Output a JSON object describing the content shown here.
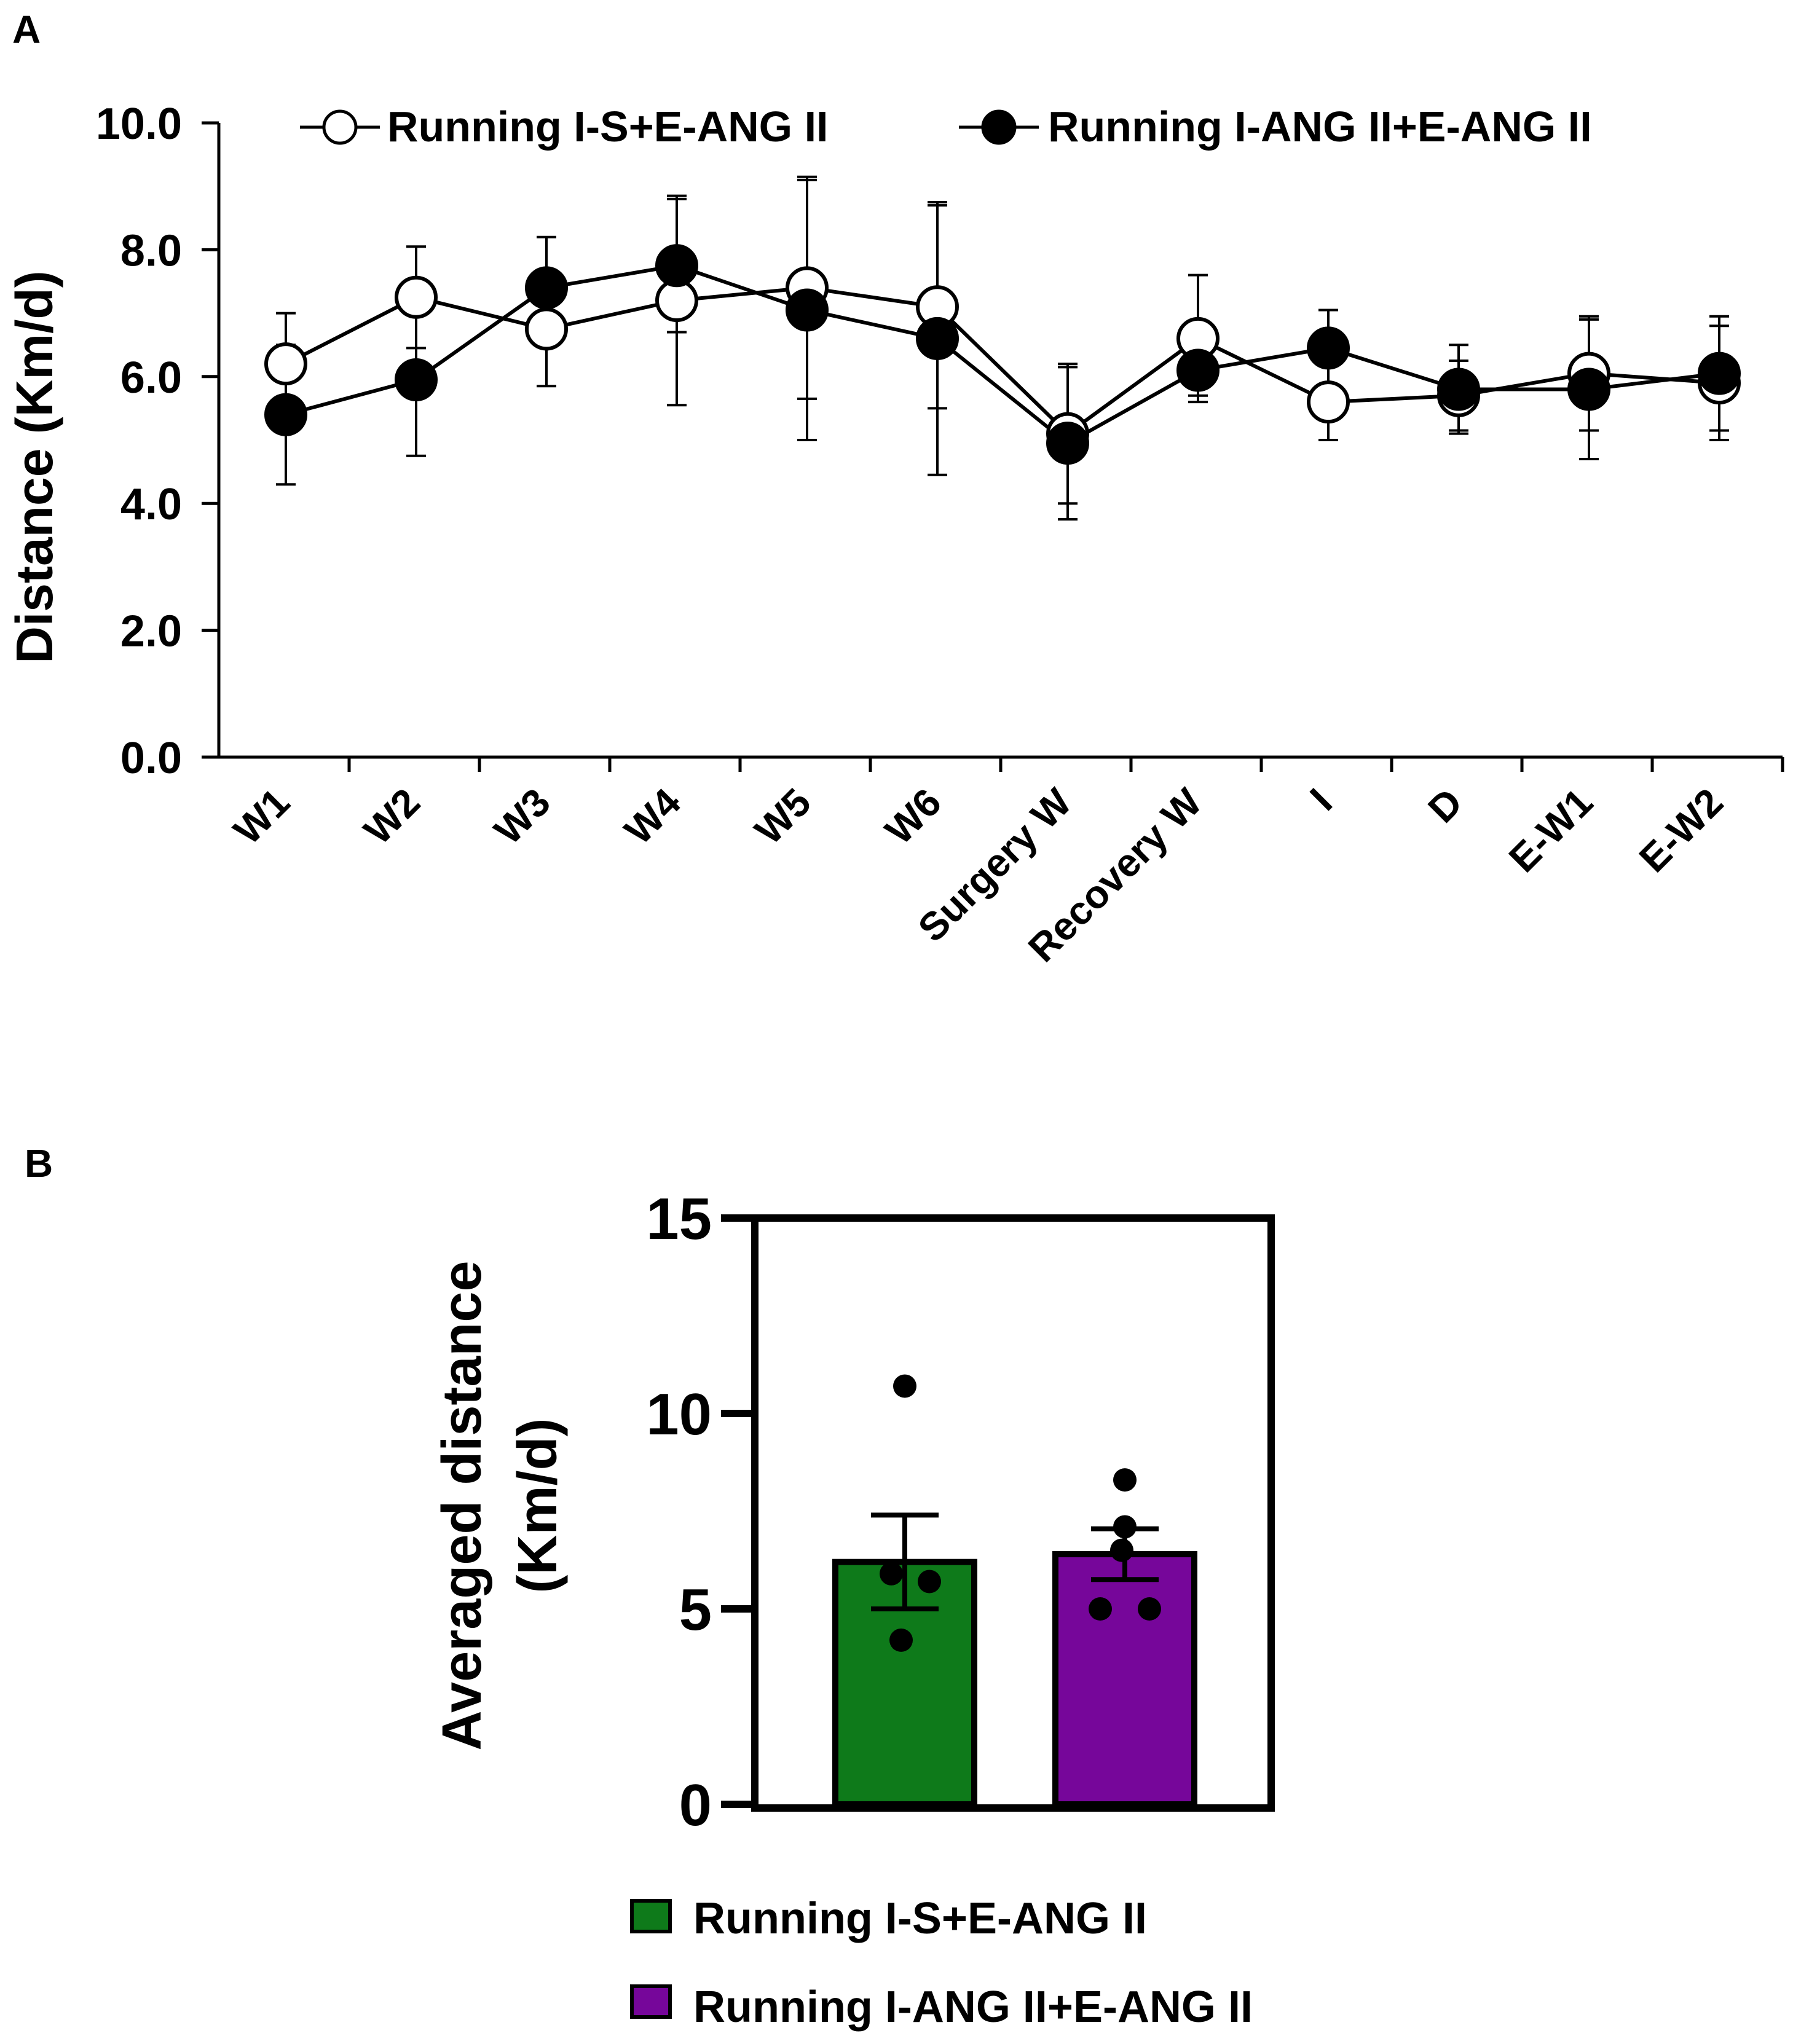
{
  "figure": {
    "panel_a_label": "A",
    "panel_b_label": "B"
  },
  "chart_data": [
    {
      "panel": "A",
      "type": "line",
      "title": "",
      "xlabel": "",
      "ylabel": "Distance (Km/d)",
      "ylim": [
        0,
        10
      ],
      "yticks": [
        "0.0",
        "2.0",
        "4.0",
        "6.0",
        "8.0",
        "10.0"
      ],
      "categories": [
        "W1",
        "W2",
        "W3",
        "W4",
        "W5",
        "W6",
        "Surgery W",
        "Recovery W",
        "I",
        "D",
        "E-W1",
        "E-W2"
      ],
      "legend_position": "top",
      "series": [
        {
          "name": "Running I-S+E-ANG II",
          "marker": "open-circle",
          "values": [
            6.2,
            7.25,
            6.75,
            7.2,
            7.4,
            7.1,
            5.1,
            6.6,
            5.6,
            5.7,
            6.05,
            5.9
          ],
          "errors": [
            0.8,
            0.8,
            0.9,
            1.65,
            1.75,
            1.6,
            1.1,
            1.0,
            0.6,
            0.55,
            0.9,
            0.9
          ]
        },
        {
          "name": "Running I-ANG II+E-ANG II",
          "marker": "filled-circle",
          "values": [
            5.4,
            5.95,
            7.4,
            7.75,
            7.05,
            6.6,
            4.95,
            6.1,
            6.45,
            5.8,
            5.8,
            6.05
          ],
          "errors": [
            1.1,
            1.2,
            0.8,
            1.05,
            2.05,
            2.15,
            1.2,
            0.4,
            0.6,
            0.7,
            1.1,
            0.9
          ]
        }
      ]
    },
    {
      "panel": "B",
      "type": "bar",
      "title": "",
      "ylabel_line1": "Averaged distance",
      "ylabel_line2": "(Km/d)",
      "ylim": [
        0,
        15
      ],
      "yticks": [
        "0",
        "5",
        "10",
        "15"
      ],
      "legend_position": "bottom",
      "series": [
        {
          "name": "Running I-S+E-ANG II",
          "color": "#0e7a1a",
          "value": 6.2,
          "error": 1.2,
          "points": [
            10.7,
            5.9,
            5.7,
            4.2
          ]
        },
        {
          "name": "Running I-ANG II+E-ANG II",
          "color": "#76069a",
          "value": 6.4,
          "error": 0.65,
          "points": [
            8.3,
            7.1,
            6.5,
            5.0,
            5.0
          ]
        }
      ]
    }
  ]
}
